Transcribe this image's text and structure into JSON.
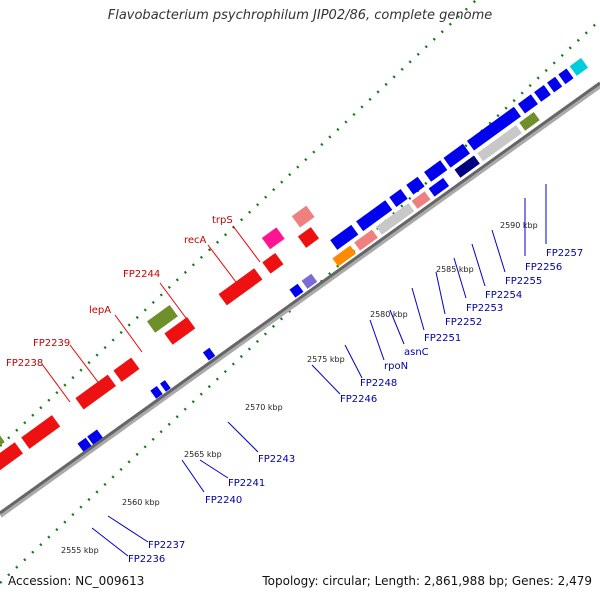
{
  "title": "Flavobacterium psychrophilum JIP02/86, complete genome",
  "footer": {
    "accession": "Accession: NC_009613",
    "stats": "Topology: circular; Length: 2,861,988 bp; Genes: 2,479"
  },
  "colors": {
    "backbone": "#888888",
    "ticks": "#1a7a1a",
    "upper_label": "#cc0000",
    "lower_label": "#0000aa"
  },
  "scale_labels": [
    "2555 kbp",
    "2560 kbp",
    "2565 kbp",
    "2570 kbp",
    "2575 kbp",
    "2580 kbp",
    "2585 kbp",
    "2590 kbp"
  ],
  "upper_labels": [
    "FP2238",
    "FP2239",
    "lepA",
    "FP2244",
    "recA",
    "trpS"
  ],
  "lower_labels": [
    "FP2236",
    "FP2237",
    "FP2240",
    "FP2241",
    "FP2243",
    "FP2246",
    "FP2248",
    "rpoN",
    "asnC",
    "FP2251",
    "FP2252",
    "FP2253",
    "FP2254",
    "FP2255",
    "FP2256",
    "FP2257"
  ]
}
